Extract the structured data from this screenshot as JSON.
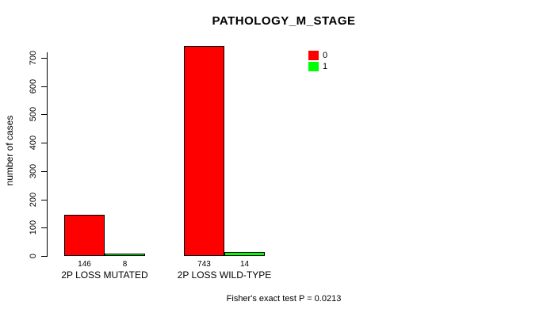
{
  "chart_data": {
    "type": "bar",
    "title": "PATHOLOGY_M_STAGE",
    "ylabel": "number of cases",
    "xlabel": "",
    "categories": [
      "2P LOSS MUTATED",
      "2P LOSS WILD-TYPE"
    ],
    "series": [
      {
        "name": "0",
        "color": "#FF0000",
        "values": [
          146,
          743
        ]
      },
      {
        "name": "1",
        "color": "#00FF00",
        "values": [
          8,
          14
        ]
      }
    ],
    "bar_value_labels": [
      [
        "146",
        "8"
      ],
      [
        "743",
        "14"
      ]
    ],
    "ylim": [
      0,
      700
    ],
    "yticks": [
      "0",
      "100",
      "200",
      "300",
      "400",
      "500",
      "600",
      "700"
    ],
    "grid": false,
    "legend_position": "top-right",
    "legend": [
      {
        "label": "0",
        "color": "#FF0000"
      },
      {
        "label": "1",
        "color": "#00FF00"
      }
    ],
    "annotation": "Fisher's exact test P = 0.0213"
  },
  "colors": {
    "background": "#FFFFFF",
    "text": "#000000",
    "bar_border": "#000000",
    "series_0": "#FF0000",
    "series_1": "#00FF00"
  }
}
